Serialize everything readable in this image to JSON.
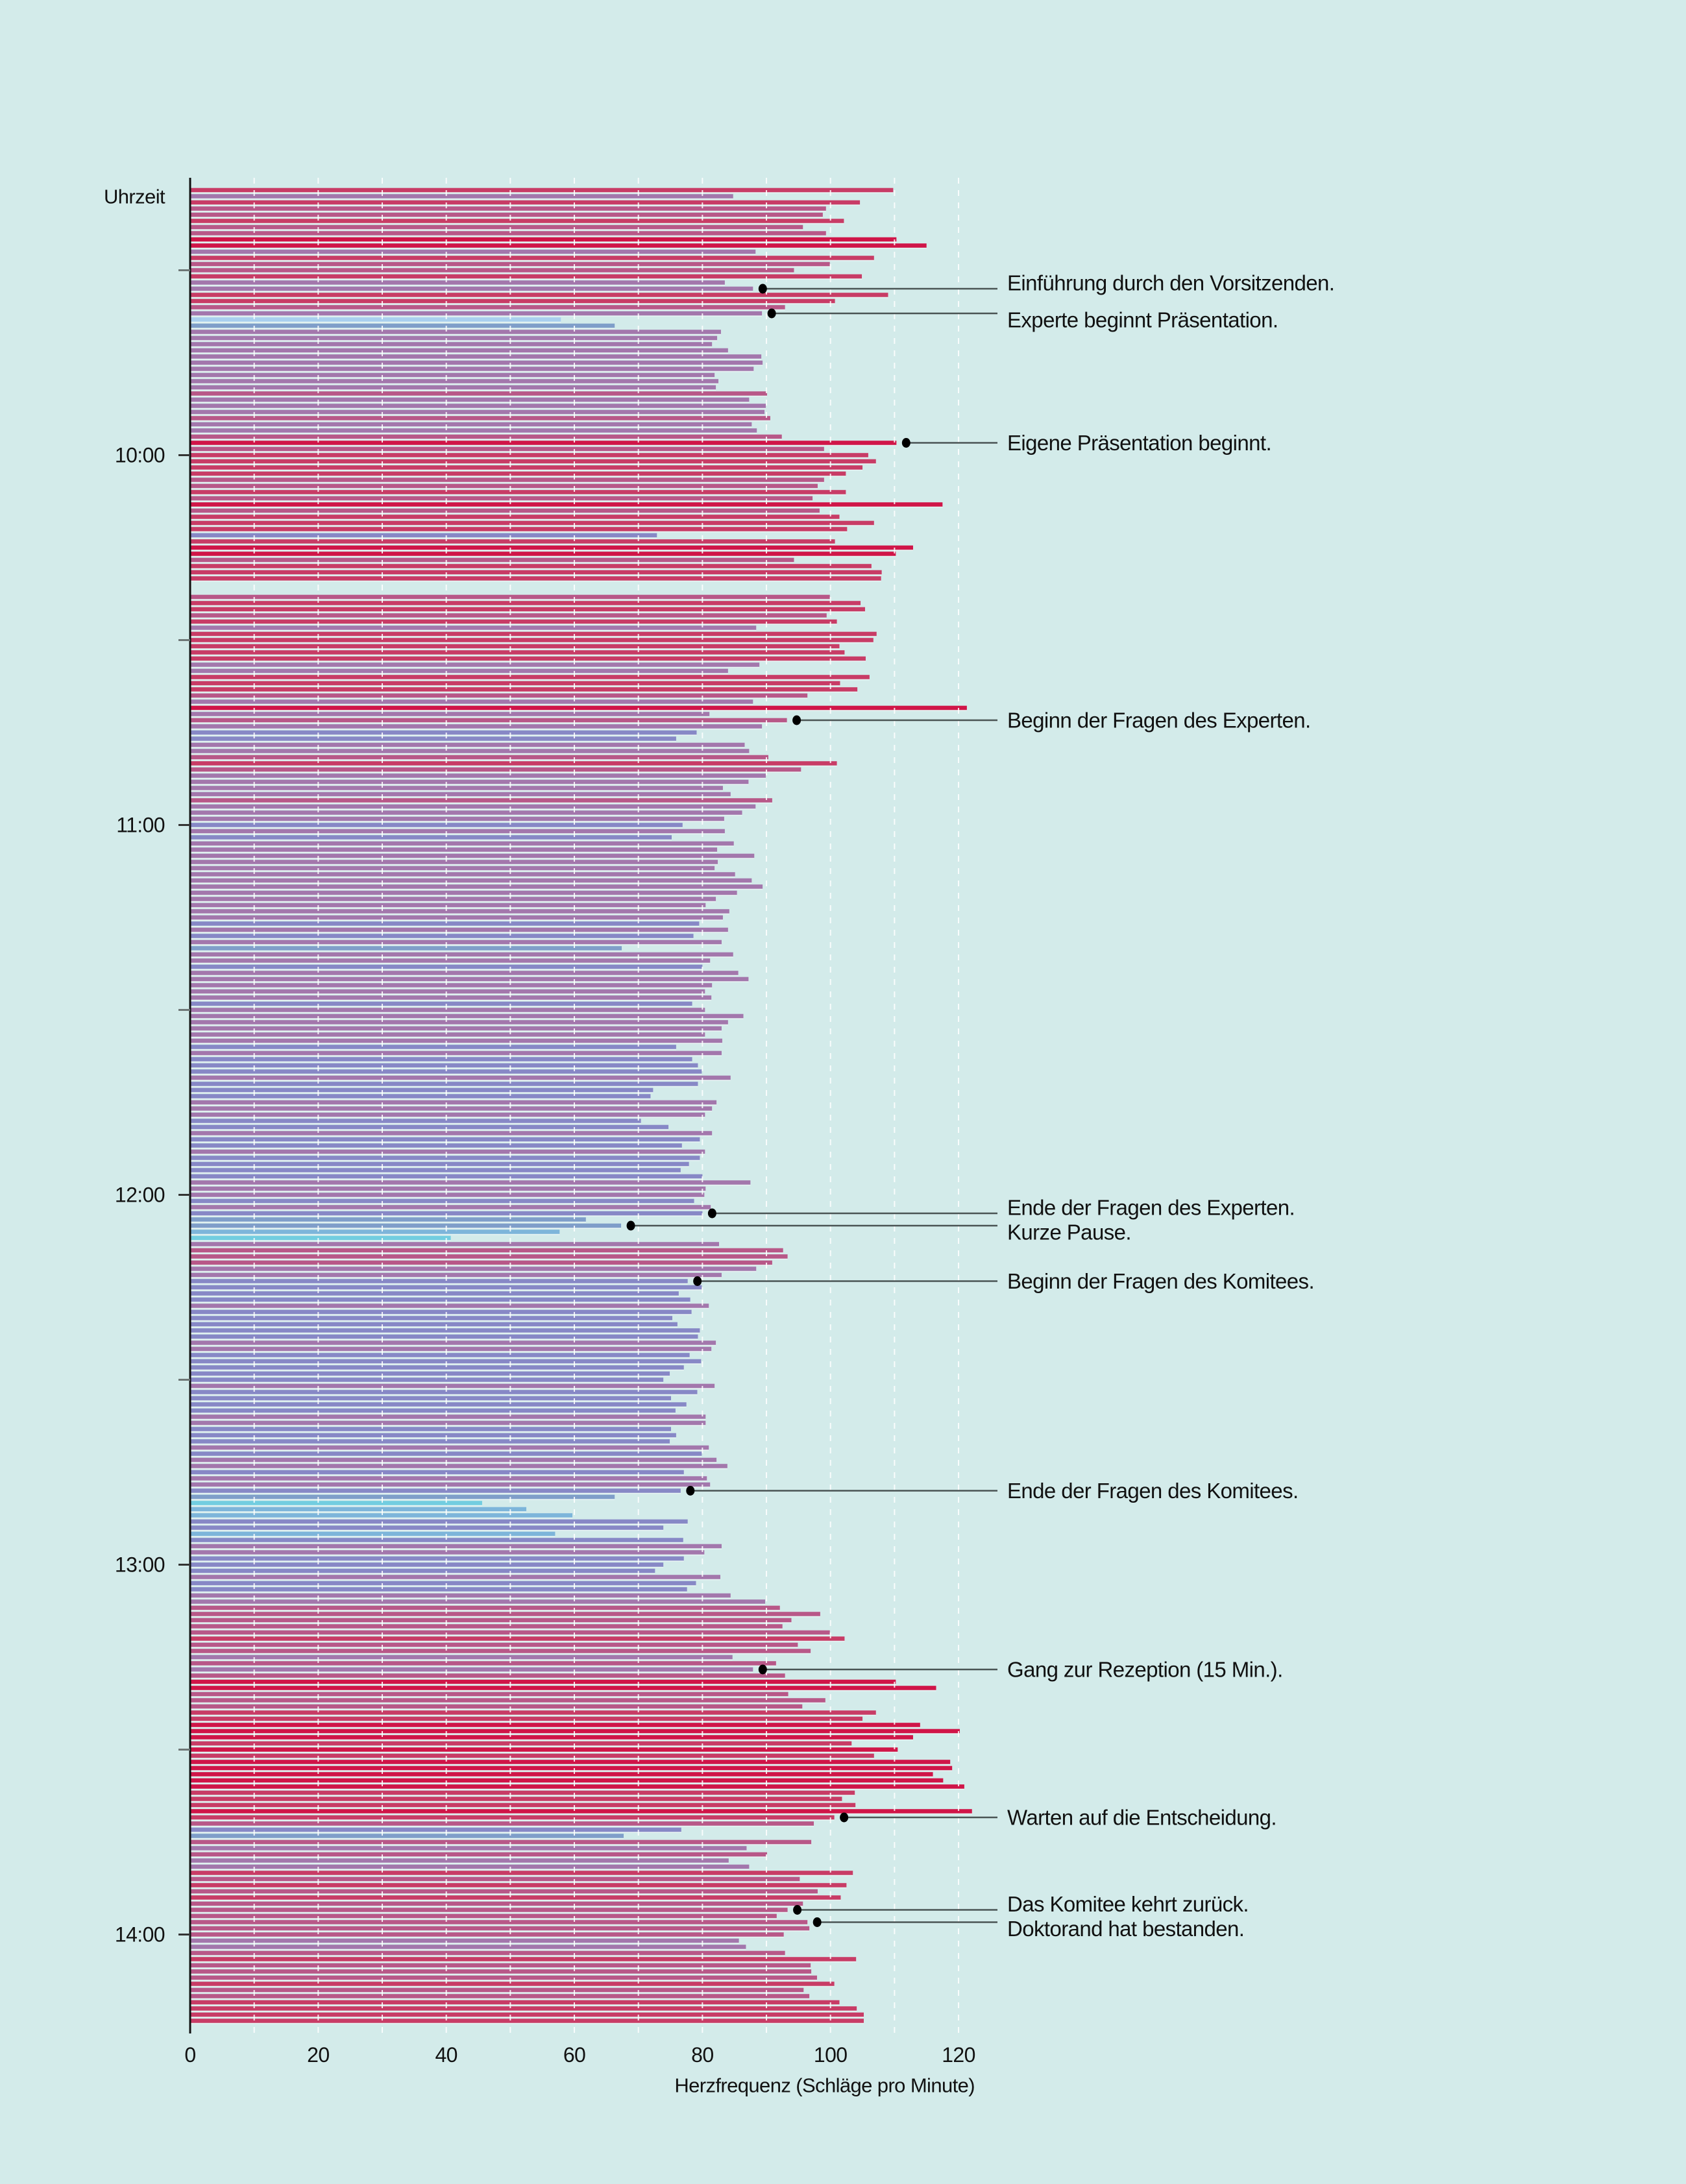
{
  "page": {
    "background_color": "#D3EBEA"
  },
  "chart_data": {
    "type": "bar",
    "orientation": "horizontal",
    "title": "",
    "xlabel": "Herzfrequenz (Schläge pro Minute)",
    "ylabel": "Uhrzeit",
    "xlim": [
      0,
      125
    ],
    "xticks": [
      0,
      20,
      40,
      60,
      80,
      100,
      120
    ],
    "xtick_labels": [
      "0",
      "20",
      "40",
      "60",
      "80",
      "100",
      "120"
    ],
    "grid": true,
    "grid_axis": "x",
    "grid_step": 10,
    "grid_max": 120,
    "y_range": [
      "09:17",
      "14:14"
    ],
    "y_major_ticks": [
      "10:00",
      "11:00",
      "12:00",
      "13:00",
      "14:00"
    ],
    "y_major_tick_labels": [
      "10:00",
      "11:00",
      "12:00",
      "13:00",
      "14:00"
    ],
    "y_minor_ticks": [
      "09:30",
      "10:30",
      "11:30",
      "12:30",
      "13:30"
    ],
    "color_scale": [
      {
        "min_bpm": 110,
        "color": "#D01548"
      },
      {
        "min_bpm": 100,
        "color": "#C83C66"
      },
      {
        "min_bpm": 90,
        "color": "#B85888"
      },
      {
        "min_bpm": 80.2,
        "color": "#A377AC"
      },
      {
        "min_bpm": 70,
        "color": "#8788C6"
      },
      {
        "min_bpm": 61,
        "color": "#7F9EC9"
      },
      {
        "min_bpm": 50,
        "color": "#7DB5DA"
      },
      {
        "min_bpm": 0,
        "color": "#72CDE0"
      }
    ],
    "color_overrides": [
      {
        "time": "09:38",
        "color": "#A9CFEE"
      }
    ],
    "annotation_line_color": "#4A5454",
    "annotation_dot_color": "#000000",
    "bars": [
      [
        "09:17",
        109.8
      ],
      [
        "09:18",
        84.8
      ],
      [
        "09:19",
        104.6
      ],
      [
        "09:20",
        99.3
      ],
      [
        "09:21",
        98.8
      ],
      [
        "09:22",
        102.1
      ],
      [
        "09:23",
        95.7
      ],
      [
        "09:24",
        99.3
      ],
      [
        "09:25",
        110.3
      ],
      [
        "09:26",
        115.0
      ],
      [
        "09:27",
        88.3
      ],
      [
        "09:28",
        106.8
      ],
      [
        "09:29",
        99.9
      ],
      [
        "09:30",
        94.3
      ],
      [
        "09:31",
        104.9
      ],
      [
        "09:32",
        83.5
      ],
      [
        "09:33",
        87.9
      ],
      [
        "09:34",
        109.0
      ],
      [
        "09:35",
        100.7
      ],
      [
        "09:36",
        92.9
      ],
      [
        "09:37",
        89.3
      ],
      [
        "09:38",
        57.9
      ],
      [
        "09:39",
        66.3
      ],
      [
        "09:40",
        82.9
      ],
      [
        "09:41",
        82.3
      ],
      [
        "09:42",
        81.5
      ],
      [
        "09:43",
        84.0
      ],
      [
        "09:44",
        89.2
      ],
      [
        "09:45",
        89.4
      ],
      [
        "09:46",
        88.0
      ],
      [
        "09:47",
        81.9
      ],
      [
        "09:48",
        82.5
      ],
      [
        "09:49",
        82.1
      ],
      [
        "09:50",
        90.1
      ],
      [
        "09:51",
        87.3
      ],
      [
        "09:52",
        89.9
      ],
      [
        "09:53",
        89.7
      ],
      [
        "09:54",
        90.6
      ],
      [
        "09:55",
        87.7
      ],
      [
        "09:56",
        88.5
      ],
      [
        "09:57",
        92.4
      ],
      [
        "09:58",
        110.3
      ],
      [
        "09:59",
        99.0
      ],
      [
        "10:00",
        105.9
      ],
      [
        "10:01",
        107.1
      ],
      [
        "10:02",
        105.0
      ],
      [
        "10:03",
        102.4
      ],
      [
        "10:04",
        99.0
      ],
      [
        "10:05",
        98.0
      ],
      [
        "10:06",
        102.4
      ],
      [
        "10:07",
        97.2
      ],
      [
        "10:08",
        117.5
      ],
      [
        "10:09",
        98.3
      ],
      [
        "10:10",
        101.4
      ],
      [
        "10:11",
        106.8
      ],
      [
        "10:12",
        102.6
      ],
      [
        "10:13",
        72.9
      ],
      [
        "10:14",
        100.7
      ],
      [
        "10:15",
        112.9
      ],
      [
        "10:16",
        110.2
      ],
      [
        "10:17",
        94.3
      ],
      [
        "10:18",
        106.4
      ],
      [
        "10:19",
        108.0
      ],
      [
        "10:20",
        107.9
      ],
      [
        "10:23",
        99.9
      ],
      [
        "10:24",
        104.7
      ],
      [
        "10:25",
        105.4
      ],
      [
        "10:26",
        99.4
      ],
      [
        "10:27",
        101.0
      ],
      [
        "10:28",
        88.4
      ],
      [
        "10:29",
        107.2
      ],
      [
        "10:30",
        106.7
      ],
      [
        "10:31",
        101.4
      ],
      [
        "10:32",
        102.2
      ],
      [
        "10:33",
        105.5
      ],
      [
        "10:34",
        88.9
      ],
      [
        "10:35",
        84.0
      ],
      [
        "10:36",
        106.1
      ],
      [
        "10:37",
        101.5
      ],
      [
        "10:38",
        104.2
      ],
      [
        "10:39",
        96.4
      ],
      [
        "10:40",
        87.9
      ],
      [
        "10:41",
        121.3
      ],
      [
        "10:42",
        81.1
      ],
      [
        "10:43",
        93.2
      ],
      [
        "10:44",
        89.3
      ],
      [
        "10:45",
        79.1
      ],
      [
        "10:46",
        75.9
      ],
      [
        "10:47",
        86.6
      ],
      [
        "10:48",
        87.3
      ],
      [
        "10:49",
        90.3
      ],
      [
        "10:50",
        101.0
      ],
      [
        "10:51",
        95.4
      ],
      [
        "10:52",
        89.9
      ],
      [
        "10:53",
        87.2
      ],
      [
        "10:54",
        83.2
      ],
      [
        "10:55",
        84.4
      ],
      [
        "10:56",
        90.9
      ],
      [
        "10:57",
        88.3
      ],
      [
        "10:58",
        86.2
      ],
      [
        "10:59",
        83.4
      ],
      [
        "11:00",
        76.9
      ],
      [
        "11:01",
        83.5
      ],
      [
        "11:02",
        75.2
      ],
      [
        "11:03",
        84.9
      ],
      [
        "11:04",
        82.3
      ],
      [
        "11:05",
        88.1
      ],
      [
        "11:06",
        82.4
      ],
      [
        "11:07",
        81.9
      ],
      [
        "11:08",
        85.1
      ],
      [
        "11:09",
        87.7
      ],
      [
        "11:10",
        89.4
      ],
      [
        "11:11",
        85.4
      ],
      [
        "11:12",
        82.1
      ],
      [
        "11:13",
        80.5
      ],
      [
        "11:14",
        84.2
      ],
      [
        "11:15",
        83.2
      ],
      [
        "11:16",
        79.5
      ],
      [
        "11:17",
        84.0
      ],
      [
        "11:18",
        78.6
      ],
      [
        "11:19",
        83.0
      ],
      [
        "11:20",
        67.4
      ],
      [
        "11:21",
        84.8
      ],
      [
        "11:22",
        81.2
      ],
      [
        "11:23",
        80.0
      ],
      [
        "11:24",
        85.6
      ],
      [
        "11:25",
        87.2
      ],
      [
        "11:26",
        81.5
      ],
      [
        "11:27",
        80.4
      ],
      [
        "11:28",
        81.4
      ],
      [
        "11:29",
        78.4
      ],
      [
        "11:30",
        80.4
      ],
      [
        "11:31",
        86.4
      ],
      [
        "11:32",
        84.0
      ],
      [
        "11:33",
        83.0
      ],
      [
        "11:34",
        80.4
      ],
      [
        "11:35",
        83.1
      ],
      [
        "11:36",
        75.9
      ],
      [
        "11:37",
        83.0
      ],
      [
        "11:38",
        78.4
      ],
      [
        "11:39",
        79.3
      ],
      [
        "11:40",
        79.9
      ],
      [
        "11:41",
        84.4
      ],
      [
        "11:42",
        79.3
      ],
      [
        "11:43",
        72.3
      ],
      [
        "11:44",
        71.9
      ],
      [
        "11:45",
        82.2
      ],
      [
        "11:46",
        81.5
      ],
      [
        "11:47",
        80.4
      ],
      [
        "11:48",
        70.4
      ],
      [
        "11:49",
        74.7
      ],
      [
        "11:50",
        81.5
      ],
      [
        "11:51",
        79.6
      ],
      [
        "11:52",
        76.8
      ],
      [
        "11:53",
        80.4
      ],
      [
        "11:54",
        79.6
      ],
      [
        "11:55",
        77.9
      ],
      [
        "11:56",
        76.6
      ],
      [
        "11:57",
        80.0
      ],
      [
        "11:58",
        87.5
      ],
      [
        "11:59",
        80.5
      ],
      [
        "12:00",
        80.3
      ],
      [
        "12:01",
        78.7
      ],
      [
        "12:02",
        81.3
      ],
      [
        "12:03",
        80.0
      ],
      [
        "12:04",
        61.8
      ],
      [
        "12:05",
        67.3
      ],
      [
        "12:06",
        57.7
      ],
      [
        "12:07",
        40.7
      ],
      [
        "12:08",
        82.6
      ],
      [
        "12:09",
        92.6
      ],
      [
        "12:10",
        93.3
      ],
      [
        "12:11",
        90.9
      ],
      [
        "12:12",
        88.4
      ],
      [
        "12:13",
        83.0
      ],
      [
        "12:14",
        77.7
      ],
      [
        "12:15",
        79.9
      ],
      [
        "12:16",
        76.3
      ],
      [
        "12:17",
        78.1
      ],
      [
        "12:18",
        81.0
      ],
      [
        "12:19",
        78.3
      ],
      [
        "12:20",
        75.3
      ],
      [
        "12:21",
        76.1
      ],
      [
        "12:22",
        79.6
      ],
      [
        "12:23",
        79.3
      ],
      [
        "12:24",
        82.1
      ],
      [
        "12:25",
        81.4
      ],
      [
        "12:26",
        78.0
      ],
      [
        "12:27",
        79.8
      ],
      [
        "12:28",
        77.1
      ],
      [
        "12:29",
        74.9
      ],
      [
        "12:30",
        73.9
      ],
      [
        "12:31",
        81.9
      ],
      [
        "12:32",
        79.2
      ],
      [
        "12:33",
        75.1
      ],
      [
        "12:34",
        77.5
      ],
      [
        "12:35",
        75.8
      ],
      [
        "12:36",
        80.5
      ],
      [
        "12:37",
        80.5
      ],
      [
        "12:38",
        75.1
      ],
      [
        "12:39",
        75.9
      ],
      [
        "12:40",
        74.9
      ],
      [
        "12:41",
        81.0
      ],
      [
        "12:42",
        79.9
      ],
      [
        "12:43",
        82.2
      ],
      [
        "12:44",
        83.9
      ],
      [
        "12:45",
        77.1
      ],
      [
        "12:46",
        80.7
      ],
      [
        "12:47",
        81.2
      ],
      [
        "12:48",
        76.6
      ],
      [
        "12:49",
        66.3
      ],
      [
        "12:50",
        45.6
      ],
      [
        "12:51",
        52.5
      ],
      [
        "12:52",
        59.7
      ],
      [
        "12:53",
        77.7
      ],
      [
        "12:54",
        73.9
      ],
      [
        "12:55",
        57.0
      ],
      [
        "12:56",
        77.0
      ],
      [
        "12:57",
        83.0
      ],
      [
        "12:58",
        80.3
      ],
      [
        "12:59",
        77.1
      ],
      [
        "13:00",
        73.9
      ],
      [
        "13:01",
        72.6
      ],
      [
        "13:02",
        82.8
      ],
      [
        "13:03",
        79.0
      ],
      [
        "13:04",
        77.6
      ],
      [
        "13:05",
        84.4
      ],
      [
        "13:06",
        89.8
      ],
      [
        "13:07",
        92.1
      ],
      [
        "13:08",
        98.4
      ],
      [
        "13:09",
        93.9
      ],
      [
        "13:10",
        92.5
      ],
      [
        "13:11",
        99.9
      ],
      [
        "13:12",
        102.2
      ],
      [
        "13:13",
        94.9
      ],
      [
        "13:14",
        96.9
      ],
      [
        "13:15",
        84.7
      ],
      [
        "13:16",
        91.5
      ],
      [
        "13:17",
        87.9
      ],
      [
        "13:18",
        92.9
      ],
      [
        "13:19",
        110.2
      ],
      [
        "13:20",
        116.5
      ],
      [
        "13:21",
        93.4
      ],
      [
        "13:22",
        99.2
      ],
      [
        "13:23",
        95.6
      ],
      [
        "13:24",
        107.1
      ],
      [
        "13:25",
        105.0
      ],
      [
        "13:26",
        114.0
      ],
      [
        "13:27",
        120.2
      ],
      [
        "13:28",
        112.9
      ],
      [
        "13:29",
        103.3
      ],
      [
        "13:30",
        110.5
      ],
      [
        "13:31",
        106.8
      ],
      [
        "13:32",
        118.7
      ],
      [
        "13:33",
        119.0
      ],
      [
        "13:34",
        116.0
      ],
      [
        "13:35",
        117.6
      ],
      [
        "13:36",
        120.9
      ],
      [
        "13:37",
        103.8
      ],
      [
        "13:38",
        101.8
      ],
      [
        "13:39",
        103.9
      ],
      [
        "13:40",
        122.1
      ],
      [
        "13:41",
        100.6
      ],
      [
        "13:42",
        97.4
      ],
      [
        "13:43",
        76.7
      ],
      [
        "13:44",
        67.7
      ],
      [
        "13:45",
        97.0
      ],
      [
        "13:46",
        86.9
      ],
      [
        "13:47",
        90.1
      ],
      [
        "13:48",
        84.1
      ],
      [
        "13:49",
        87.3
      ],
      [
        "13:50",
        103.5
      ],
      [
        "13:51",
        95.2
      ],
      [
        "13:52",
        102.5
      ],
      [
        "13:53",
        98.0
      ],
      [
        "13:54",
        101.6
      ],
      [
        "13:55",
        95.7
      ],
      [
        "13:56",
        93.3
      ],
      [
        "13:57",
        91.6
      ],
      [
        "13:58",
        96.4
      ],
      [
        "13:59",
        96.7
      ],
      [
        "14:00",
        92.7
      ],
      [
        "14:01",
        85.7
      ],
      [
        "14:02",
        86.8
      ],
      [
        "14:03",
        92.9
      ],
      [
        "14:04",
        104.0
      ],
      [
        "14:05",
        96.9
      ],
      [
        "14:06",
        97.0
      ],
      [
        "14:07",
        97.9
      ],
      [
        "14:08",
        100.6
      ],
      [
        "14:09",
        95.8
      ],
      [
        "14:10",
        96.7
      ],
      [
        "14:11",
        101.4
      ],
      [
        "14:12",
        104.1
      ],
      [
        "14:13",
        105.2
      ],
      [
        "14:14",
        105.2
      ]
    ],
    "annotations": [
      {
        "time": "09:33",
        "label": "Einführung durch den Vorsitzenden."
      },
      {
        "time": "09:37",
        "label": "Experte beginnt Präsentation."
      },
      {
        "time": "09:58",
        "label": "Eigene Präsentation beginnt."
      },
      {
        "time": "10:43",
        "label": "Beginn der Fragen des Experten."
      },
      {
        "time": "12:03",
        "label": "Ende der Fragen des Experten."
      },
      {
        "time": "12:05",
        "label": "Kurze Pause."
      },
      {
        "time": "12:14",
        "label": "Beginn der Fragen des Komitees."
      },
      {
        "time": "12:48",
        "label": "Ende der Fragen des Komitees."
      },
      {
        "time": "13:17",
        "label": "Gang zur Rezeption (15 Min.)."
      },
      {
        "time": "13:41",
        "label": "Warten auf die Entscheidung."
      },
      {
        "time": "13:56",
        "label": "Das Komitee kehrt zurück."
      },
      {
        "time": "13:58",
        "label": "Doktorand hat bestanden."
      }
    ]
  }
}
